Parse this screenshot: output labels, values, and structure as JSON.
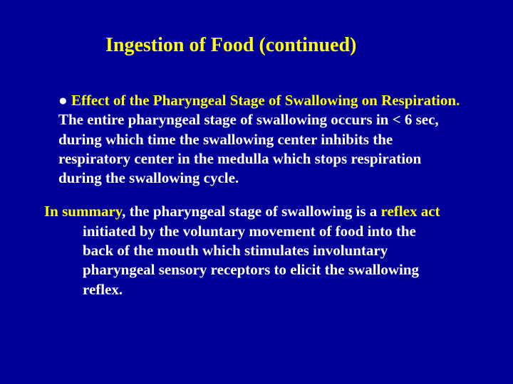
{
  "background_color": "#000099",
  "text_color": "#ffffff",
  "accent_color": "#ffff00",
  "font_family": "Times New Roman",
  "title_fontsize": 28,
  "body_fontsize": 21,
  "title": "Ingestion of Food (continued)",
  "bullet_char": "●",
  "bullet_heading": "Effect of the Pharyngeal Stage of Swallowing on Respiration.",
  "bullet_body": "The entire  pharyngeal stage of swallowing occurs in < 6 sec, during which time the swallowing center inhibits the respiratory center in the medulla which stops respiration during the swallowing cycle.",
  "summary_lead": "In summary",
  "summary_mid1": ", the pharyngeal stage of swallowing is a ",
  "summary_reflex": "reflex act",
  "summary_rest": "initiated by the voluntary movement of food into the back of the mouth which stimulates involuntary pharyngeal sensory receptors to elicit the swallowing reflex."
}
